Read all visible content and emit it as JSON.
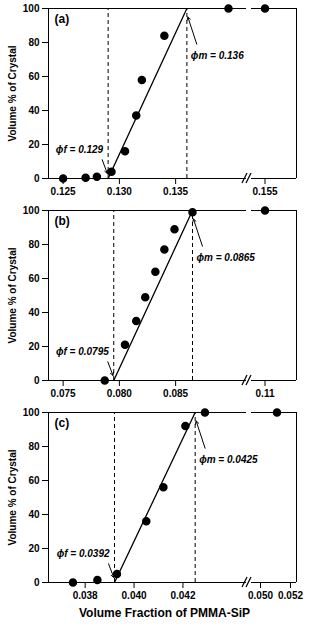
{
  "chart_data": [
    {
      "type": "scatter",
      "title": "(a)",
      "ylabel": "Volume % of Crystal",
      "color": "#000000",
      "marker": "circle",
      "x": [
        0.125,
        0.127,
        0.128,
        0.1293,
        0.1305,
        0.1315,
        0.132,
        0.134,
        0.1397,
        0.155
      ],
      "values": [
        0,
        0.5,
        1,
        4,
        16,
        37,
        58,
        84,
        100,
        100
      ],
      "fit": {
        "x": [
          0.129,
          0.136
        ],
        "values": [
          0,
          100
        ],
        "line_style": "solid"
      },
      "annotations": [
        {
          "label": "ϕf = 0.129",
          "x": 0.129,
          "line_style": "dashed"
        },
        {
          "label": "ϕm = 0.136",
          "x": 0.136,
          "line_style": "dashed"
        }
      ],
      "xlim": [
        0.1237,
        0.1413
      ],
      "xticks": [
        0.125,
        {
          "value": 0.13,
          "label": "0.130"
        },
        0.135
      ],
      "x_break_lim": [
        0.1535,
        0.1585
      ],
      "x_break_ticks": [
        0.155
      ],
      "ylim": [
        0,
        100
      ],
      "yticks": [
        0,
        20,
        40,
        60,
        80,
        100
      ]
    },
    {
      "type": "scatter",
      "title": "(b)",
      "ylabel": "Volume % of Crystal",
      "color": "#000000",
      "marker": "circle",
      "x": [
        0.0787,
        0.0805,
        0.0815,
        0.0823,
        0.0832,
        0.084,
        0.0849,
        0.0865,
        0.11
      ],
      "values": [
        0,
        21,
        35,
        49,
        64,
        77,
        89,
        99,
        100
      ],
      "fit": {
        "x": [
          0.0795,
          0.0865
        ],
        "values": [
          0,
          100
        ],
        "line_style": "solid"
      },
      "annotations": [
        {
          "label": "ϕf = 0.0795",
          "x": 0.0795,
          "line_style": "dashed"
        },
        {
          "label": "ϕm = 0.0865",
          "x": 0.0865,
          "line_style": "dashed"
        }
      ],
      "xlim": [
        0.0737,
        0.0913
      ],
      "xticks": [
        0.075,
        {
          "value": 0.08,
          "label": "0.080"
        },
        0.085
      ],
      "x_break_lim": [
        0.1085,
        0.1135
      ],
      "x_break_ticks": [
        0.11
      ],
      "ylim": [
        0,
        100
      ],
      "yticks": [
        0,
        20,
        40,
        60,
        80,
        100
      ]
    },
    {
      "type": "scatter",
      "title": "(c)",
      "ylabel": "Volume % of Crystal",
      "xlabel": "Volume Fraction of PMMA-SiP",
      "color": "#000000",
      "marker": "circle",
      "x": [
        0.0375,
        0.0385,
        0.0393,
        0.0405,
        0.0412,
        0.0421,
        0.0429,
        0.0511
      ],
      "values": [
        0,
        1.5,
        5,
        36,
        56,
        92,
        100,
        100
      ],
      "fit": {
        "x": [
          0.0392,
          0.0425
        ],
        "values": [
          0,
          100
        ],
        "line_style": "solid"
      },
      "annotations": [
        {
          "label": "ϕf = 0.0392",
          "x": 0.0392,
          "line_style": "dashed"
        },
        {
          "label": "ϕm = 0.0425",
          "x": 0.0425,
          "line_style": "dashed"
        }
      ],
      "xlim": [
        0.0365,
        0.0446
      ],
      "xticks": [
        0.038,
        {
          "value": 0.04,
          "label": "0.040"
        },
        0.042
      ],
      "x_break_lim": [
        0.0494,
        0.0524
      ],
      "x_break_ticks": [
        {
          "value": 0.05,
          "label": "0.050"
        },
        0.052
      ],
      "ylim": [
        0,
        100
      ],
      "yticks": [
        0,
        20,
        40,
        60,
        80,
        100
      ]
    }
  ]
}
